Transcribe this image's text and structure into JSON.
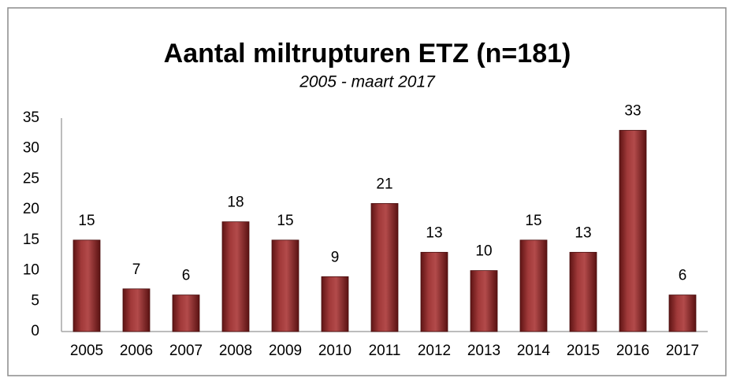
{
  "chart_data": {
    "type": "bar",
    "title": "Aantal miltrupturen ETZ (n=181)",
    "subtitle": "2005 - maart 2017",
    "categories": [
      "2005",
      "2006",
      "2007",
      "2008",
      "2009",
      "2010",
      "2011",
      "2012",
      "2013",
      "2014",
      "2015",
      "2016",
      "2017"
    ],
    "values": [
      15,
      7,
      6,
      18,
      15,
      9,
      21,
      13,
      10,
      15,
      13,
      33,
      6
    ],
    "color": "#8b2a2a",
    "ylim": [
      0,
      35
    ],
    "yticks": [
      0,
      5,
      10,
      15,
      20,
      25,
      30,
      35
    ],
    "grid": false
  }
}
